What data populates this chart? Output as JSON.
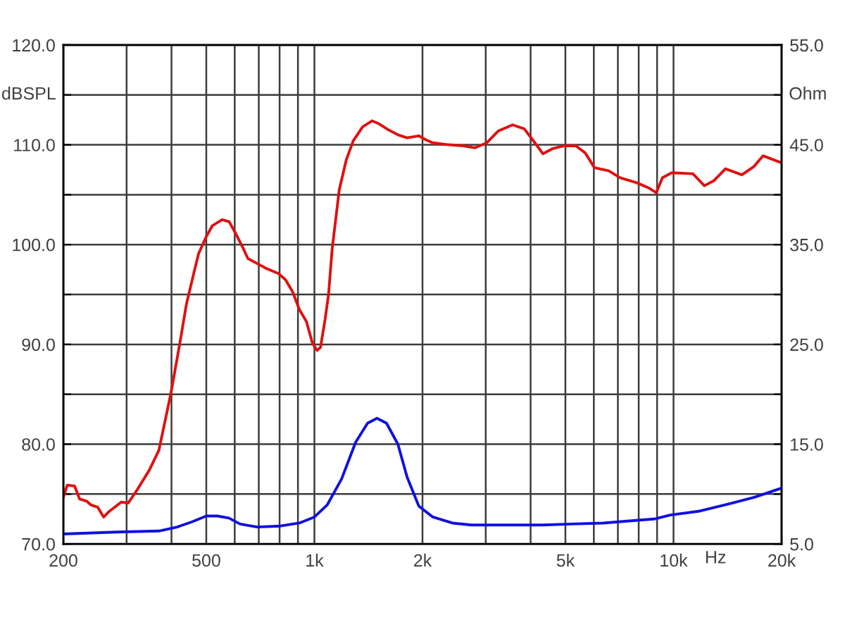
{
  "chart_data": {
    "type": "line",
    "xlabel": "Hz",
    "ylabel": "dBSPL",
    "y2label": "Ohm",
    "log": "x",
    "grid": true,
    "xlim": [
      200,
      20000
    ],
    "xticks": [
      200,
      {
        "value": 300,
        "label": null
      },
      {
        "value": 400,
        "label": null
      },
      500,
      {
        "value": 600,
        "label": null
      },
      {
        "value": 700,
        "label": null
      },
      {
        "value": 800,
        "label": null
      },
      {
        "value": 900,
        "label": null
      },
      {
        "value": 1000,
        "label": "1k"
      },
      {
        "value": 2000,
        "label": "2k"
      },
      {
        "value": 3000,
        "label": null
      },
      {
        "value": 4000,
        "label": null
      },
      {
        "value": 5000,
        "label": "5k"
      },
      {
        "value": 6000,
        "label": null
      },
      {
        "value": 7000,
        "label": null
      },
      {
        "value": 8000,
        "label": null
      },
      {
        "value": 9000,
        "label": null
      },
      {
        "value": 10000,
        "label": "10k"
      },
      {
        "value": 20000,
        "label": "20k"
      }
    ],
    "ylim": [
      70,
      120
    ],
    "yticks": [
      {
        "value": 70,
        "label": "70.0"
      },
      {
        "value": 75,
        "label": null
      },
      {
        "value": 80,
        "label": "80.0"
      },
      {
        "value": 85,
        "label": null
      },
      {
        "value": 90,
        "label": "90.0"
      },
      {
        "value": 95,
        "label": null
      },
      {
        "value": 100,
        "label": "100.0"
      },
      {
        "value": 105,
        "label": null
      },
      {
        "value": 110,
        "label": "110.0"
      },
      {
        "value": 115,
        "label": null
      },
      {
        "value": 120,
        "label": "120.0"
      }
    ],
    "y2lim": [
      5,
      55
    ],
    "y2ticks": [
      {
        "value": 5,
        "label": "5.0"
      },
      {
        "value": 10,
        "label": null
      },
      {
        "value": 15,
        "label": "15.0"
      },
      {
        "value": 20,
        "label": null
      },
      {
        "value": 25,
        "label": "25.0"
      },
      {
        "value": 30,
        "label": null
      },
      {
        "value": 35,
        "label": "35.0"
      },
      {
        "value": 40,
        "label": null
      },
      {
        "value": 45,
        "label": "45.0"
      },
      {
        "value": 50,
        "label": null
      },
      {
        "value": 55,
        "label": "55.0"
      }
    ],
    "series": [
      {
        "color": "#e01010",
        "x": [
          200,
          205,
          215,
          222,
          232,
          239,
          249,
          259,
          269,
          290,
          303,
          322,
          347,
          369,
          398,
          422,
          440,
          462,
          476,
          500,
          520,
          553,
          579,
          606,
          634,
          653,
          693,
          736,
          794,
          830,
          869,
          908,
          950,
          988,
          1018,
          1040,
          1071,
          1095,
          1121,
          1173,
          1227,
          1283,
          1362,
          1447,
          1514,
          1608,
          1708,
          1812,
          1953,
          2044,
          2137,
          2375,
          2599,
          2801,
          3020,
          3256,
          3563,
          3841,
          4053,
          4329,
          4597,
          4955,
          5343,
          5673,
          6026,
          6594,
          7107,
          7896,
          8510,
          8954,
          9313,
          9886,
          11320,
          12190,
          12950,
          13950,
          15500,
          16720,
          17750,
          20000
        ],
        "values": [
          74.7,
          75.9,
          75.8,
          74.5,
          74.3,
          73.9,
          73.7,
          72.7,
          73.3,
          74.2,
          74.1,
          75.5,
          77.4,
          79.4,
          85.0,
          90.1,
          94.0,
          97.2,
          99.1,
          100.8,
          101.9,
          102.5,
          102.3,
          101.0,
          99.6,
          98.6,
          98.1,
          97.6,
          97.1,
          96.5,
          95.3,
          93.5,
          92.3,
          90.1,
          89.4,
          89.7,
          92.5,
          95.0,
          99.6,
          105.5,
          108.5,
          110.4,
          111.8,
          112.4,
          112.1,
          111.5,
          111.0,
          110.7,
          110.9,
          110.5,
          110.2,
          110.0,
          109.9,
          109.7,
          110.2,
          111.4,
          112.0,
          111.6,
          110.5,
          109.1,
          109.6,
          109.9,
          109.9,
          109.2,
          107.7,
          107.4,
          106.7,
          106.2,
          105.7,
          105.2,
          106.7,
          107.2,
          107.1,
          105.9,
          106.4,
          107.6,
          107.0,
          107.8,
          108.9,
          108.2
        ]
      },
      {
        "color": "#1010e0",
        "axis": "y2",
        "x": [
          200,
          282,
          369,
          415,
          455,
          500,
          537,
          578,
          621,
          693,
          805,
          908,
          1000,
          1085,
          1190,
          1303,
          1406,
          1494,
          1588,
          1708,
          1812,
          1953,
          2137,
          2422,
          2735,
          3563,
          4329,
          5184,
          6375,
          8078,
          8826,
          9790,
          11840,
          14570,
          16860,
          20000
        ],
        "values": [
          6.0,
          6.2,
          6.3,
          6.7,
          7.2,
          7.8,
          7.8,
          7.6,
          7.0,
          6.7,
          6.8,
          7.1,
          7.7,
          8.9,
          11.5,
          15.2,
          17.1,
          17.6,
          17.1,
          15.0,
          11.7,
          8.8,
          7.7,
          7.1,
          6.9,
          6.9,
          6.9,
          7.0,
          7.1,
          7.4,
          7.5,
          7.9,
          8.3,
          9.1,
          9.7,
          10.6
        ]
      }
    ]
  }
}
